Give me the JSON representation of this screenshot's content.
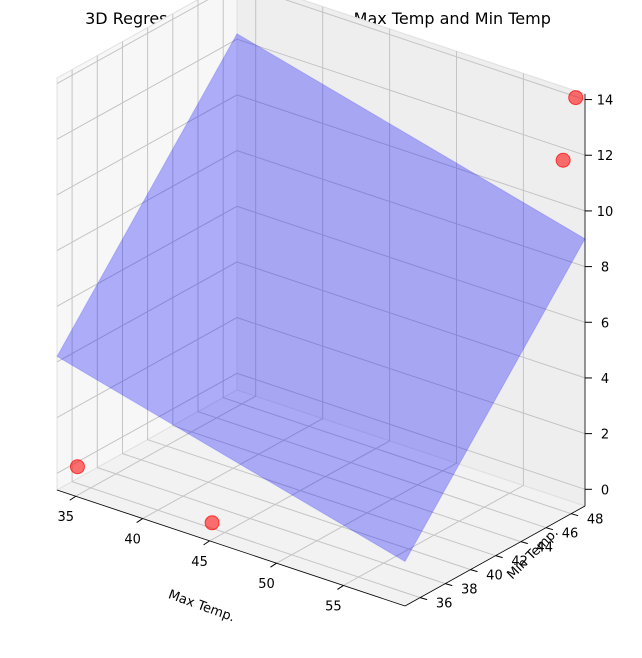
{
  "chart_data": {
    "type": "scatter",
    "title": "3D Regression Plane: Asperity vs Max Temp and Min Temp",
    "xlabel": "Max Temp.",
    "ylabel": "Min Temp.",
    "zlabel": "",
    "xticks": [
      "35",
      "40",
      "45",
      "50",
      "55"
    ],
    "yticks": [
      "36",
      "38",
      "40",
      "42",
      "44",
      "46",
      "48"
    ],
    "zticks": [
      "0",
      "2",
      "4",
      "6",
      "8",
      "10",
      "12",
      "14"
    ],
    "xlim": [
      33.6,
      59.6
    ],
    "ylim": [
      34.8,
      49.1
    ],
    "zlim": [
      -0.6,
      14.2
    ],
    "grid": true,
    "points": [
      {
        "x": 34,
        "y": 36,
        "z": 0
      },
      {
        "x": 45,
        "y": 35,
        "z": 0
      },
      {
        "x": 59,
        "y": 48,
        "z": 12
      },
      {
        "x": 59,
        "y": 49,
        "z": 14
      }
    ],
    "plane_corners": [
      {
        "x": 33.6,
        "y": 34.8,
        "z": 4.2
      },
      {
        "x": 59.6,
        "y": 34.8,
        "z": 1.0
      },
      {
        "x": 59.6,
        "y": 49.1,
        "z": 9.0
      },
      {
        "x": 33.6,
        "y": 49.1,
        "z": 12.2
      }
    ],
    "colors": {
      "points": "#ff0000",
      "plane": "#0000ff",
      "pane": "#f2f2f2",
      "grid": "#c4c4c4"
    }
  }
}
